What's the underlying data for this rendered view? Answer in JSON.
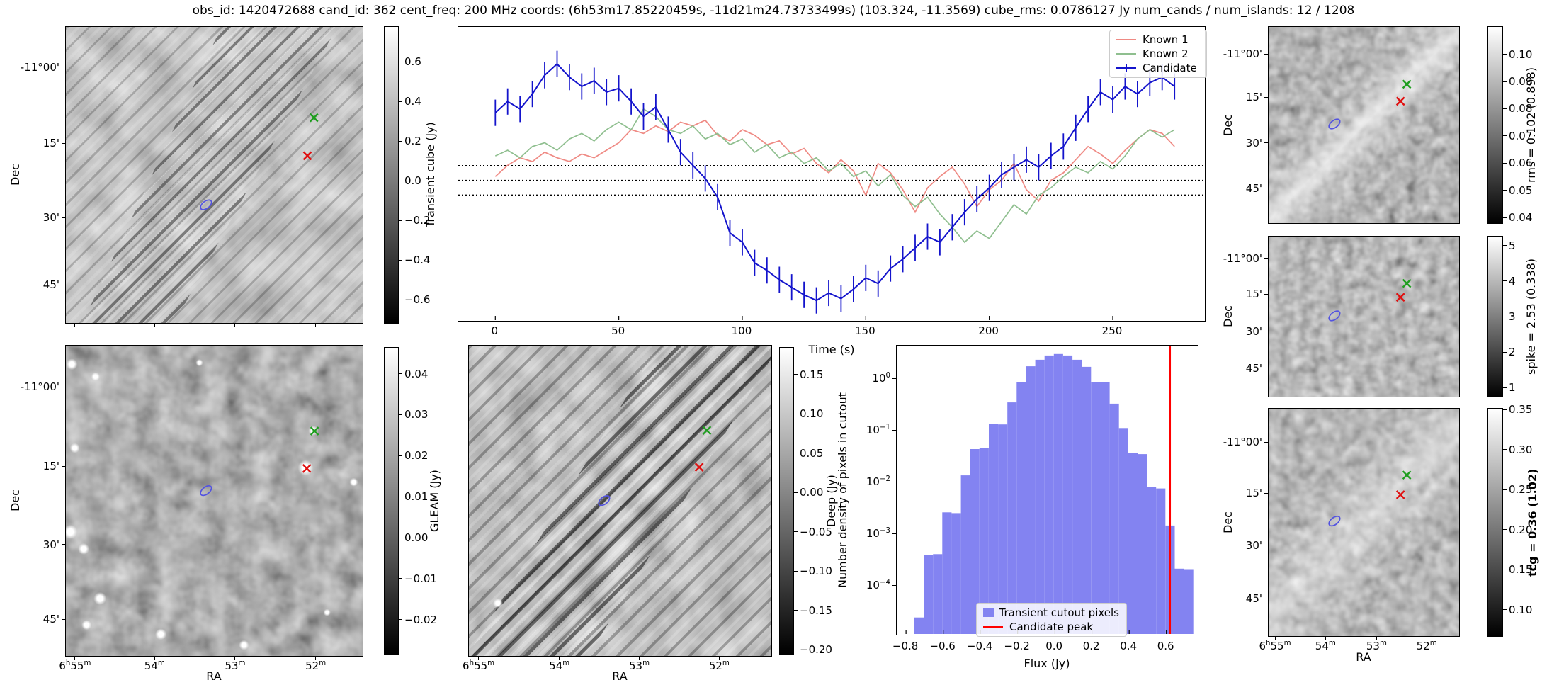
{
  "title": "obs_id: 1420472688 cand_id: 362 cent_freq: 200 MHz coords: (6h53m17.85220459s, -11d21m24.73733499s) (103.324, -11.3569) cube_rms: 0.0786127 Jy num_cands / num_islands: 12 / 1208",
  "axes": {
    "dec_label": "Dec",
    "ra_label": "RA",
    "dec_ticks": [
      "-11°00'",
      "15'",
      "30'",
      "45'"
    ],
    "ra_ticks": [
      "6h55m",
      "54m",
      "53m",
      "52m"
    ]
  },
  "colors": {
    "known1": "#ef8a84",
    "known2": "#8fbf8f",
    "candidate": "#1414cc",
    "hist_bar": "#8383f1",
    "candidate_peak_line": "#ff0000",
    "marker_green": "#1f9e1f",
    "marker_red": "#e01010",
    "marker_ellipse": "#5353e0"
  },
  "panels": {
    "transient_cube": {
      "colorbar_label": "Transient cube (Jy)",
      "colorbar_tick_labels": [
        "0.6",
        "0.4",
        "0.2",
        "0.0",
        "−0.2",
        "−0.4",
        "−0.6"
      ],
      "colorbar_tick_values": [
        0.6,
        0.4,
        0.2,
        0.0,
        -0.2,
        -0.4,
        -0.6
      ],
      "vmin": -0.72,
      "vmax": 0.78
    },
    "gleam": {
      "colorbar_label": "GLEAM (Jy)",
      "colorbar_tick_labels": [
        "0.04",
        "0.03",
        "0.02",
        "0.01",
        "0.00",
        "−0.01",
        "−0.02"
      ],
      "colorbar_tick_values": [
        0.04,
        0.03,
        0.02,
        0.01,
        0.0,
        -0.01,
        -0.02
      ],
      "vmin": -0.0285,
      "vmax": 0.0465
    },
    "deep": {
      "colorbar_label": "Deep (Jy)",
      "colorbar_tick_labels": [
        "0.15",
        "0.10",
        "0.05",
        "0.00",
        "−0.05",
        "−0.10",
        "−0.15",
        "−0.20"
      ],
      "colorbar_tick_values": [
        0.15,
        0.1,
        0.05,
        0.0,
        -0.05,
        -0.1,
        -0.15,
        -0.2
      ],
      "vmin": -0.206,
      "vmax": 0.185
    },
    "rms": {
      "colorbar_label": "rms = 0.102 (0.898)",
      "colorbar_tick_labels": [
        "0.10",
        "0.09",
        "0.08",
        "0.07",
        "0.06",
        "0.05",
        "0.04"
      ],
      "colorbar_tick_values": [
        0.1,
        0.09,
        0.08,
        0.07,
        0.06,
        0.05,
        0.04
      ],
      "vmin": 0.0377,
      "vmax": 0.1103
    },
    "spike": {
      "colorbar_label": "spike = 2.53 (0.338)",
      "colorbar_tick_labels": [
        "5",
        "4",
        "3",
        "2",
        "1"
      ],
      "colorbar_tick_values": [
        5,
        4,
        3,
        2,
        1
      ],
      "vmin": 0.73,
      "vmax": 5.27
    },
    "tcg": {
      "colorbar_label": "tcg = 0.36 (1.02)",
      "colorbar_tick_labels": [
        "0.35",
        "0.30",
        "0.25",
        "0.20",
        "0.15",
        "0.10"
      ],
      "colorbar_tick_values": [
        0.35,
        0.3,
        0.25,
        0.2,
        0.15,
        0.1
      ],
      "vmin": 0.066,
      "vmax": 0.352
    }
  },
  "chart_data": [
    {
      "id": "lightcurve",
      "type": "line",
      "xlabel": "Time (s)",
      "ylabel": "",
      "xlim": [
        -15,
        287
      ],
      "ylim": [
        -0.745,
        0.817
      ],
      "x_ticks": [
        0,
        50,
        100,
        150,
        200,
        250
      ],
      "x_step": 5,
      "dotted_hlines": [
        0.0786,
        0.0,
        -0.0786
      ],
      "legend_position": "upper right",
      "legend_entries": [
        "Known 1",
        "Known 2",
        "Candidate"
      ],
      "series": [
        {
          "name": "Known 1",
          "color": "#ef8a84",
          "errorbar": 0,
          "values": [
            0.02,
            0.08,
            0.12,
            0.1,
            0.15,
            0.12,
            0.1,
            0.14,
            0.12,
            0.16,
            0.2,
            0.27,
            0.25,
            0.29,
            0.26,
            0.31,
            0.29,
            0.32,
            0.24,
            0.21,
            0.27,
            0.24,
            0.19,
            0.21,
            0.14,
            0.17,
            0.09,
            0.04,
            0.11,
            0.05,
            -0.08,
            0.09,
            0.04,
            -0.05,
            -0.17,
            -0.04,
            0.02,
            0.07,
            -0.02,
            -0.14,
            -0.05,
            0.0,
            0.09,
            -0.05,
            -0.11,
            0.0,
            0.04,
            0.11,
            0.18,
            0.14,
            0.09,
            0.16,
            0.22,
            0.27,
            0.25,
            0.18
          ]
        },
        {
          "name": "Known 2",
          "color": "#8fbf8f",
          "errorbar": 0,
          "values": [
            0.13,
            0.16,
            0.12,
            0.18,
            0.2,
            0.16,
            0.22,
            0.25,
            0.21,
            0.27,
            0.31,
            0.27,
            0.38,
            0.34,
            0.27,
            0.25,
            0.29,
            0.22,
            0.25,
            0.19,
            0.22,
            0.15,
            0.19,
            0.12,
            0.15,
            0.09,
            0.12,
            0.05,
            0.09,
            0.02,
            0.05,
            -0.03,
            0.03,
            -0.08,
            -0.14,
            -0.09,
            -0.18,
            -0.25,
            -0.33,
            -0.27,
            -0.31,
            -0.22,
            -0.13,
            -0.18,
            -0.08,
            -0.04,
            0.02,
            0.07,
            0.04,
            0.1,
            0.06,
            0.13,
            0.22,
            0.27,
            0.23,
            0.27
          ]
        },
        {
          "name": "Candidate",
          "color": "#1414cc",
          "errorbar": 0.07,
          "values": [
            0.36,
            0.42,
            0.38,
            0.46,
            0.56,
            0.62,
            0.55,
            0.5,
            0.53,
            0.47,
            0.49,
            0.42,
            0.34,
            0.39,
            0.27,
            0.15,
            0.08,
            0.01,
            -0.09,
            -0.28,
            -0.33,
            -0.44,
            -0.48,
            -0.53,
            -0.57,
            -0.61,
            -0.64,
            -0.6,
            -0.63,
            -0.58,
            -0.52,
            -0.55,
            -0.47,
            -0.42,
            -0.36,
            -0.3,
            -0.33,
            -0.25,
            -0.17,
            -0.1,
            -0.04,
            0.03,
            0.07,
            0.11,
            0.07,
            0.13,
            0.18,
            0.28,
            0.38,
            0.47,
            0.43,
            0.5,
            0.46,
            0.52,
            0.55,
            0.5
          ]
        }
      ]
    },
    {
      "id": "pixel_histogram",
      "type": "bar",
      "xlabel": "Flux (Jy)",
      "ylabel": "Number density of pixels in cutout",
      "xlim": [
        -0.85,
        0.765
      ],
      "ylog": true,
      "ylim": [
        1.2e-05,
        4.5
      ],
      "x_tick_labels": [
        "−0.8",
        "−0.6",
        "−0.4",
        "−0.2",
        "0.0",
        "0.2",
        "0.4",
        "0.6"
      ],
      "x_tick_values": [
        -0.8,
        -0.6,
        -0.4,
        -0.2,
        0.0,
        0.2,
        0.4,
        0.6
      ],
      "y_tick_exponents": [
        0,
        -1,
        -2,
        -3,
        -4
      ],
      "bin_start": -0.755,
      "bin_width": 0.05,
      "values": [
        2.5e-05,
        0.0004,
        0.00042,
        0.0027,
        0.0026,
        0.014,
        0.045,
        0.047,
        0.14,
        0.135,
        0.36,
        0.88,
        1.8,
        2.4,
        2.9,
        3.1,
        2.9,
        2.4,
        1.75,
        0.9,
        0.88,
        0.34,
        0.115,
        0.038,
        0.036,
        0.0082,
        0.0078,
        0.0015,
        0.00022,
        0.000215
      ],
      "candidate_peak": 0.62,
      "legend_entries": [
        "Transient cutout pixels",
        "Candidate peak"
      ]
    }
  ]
}
